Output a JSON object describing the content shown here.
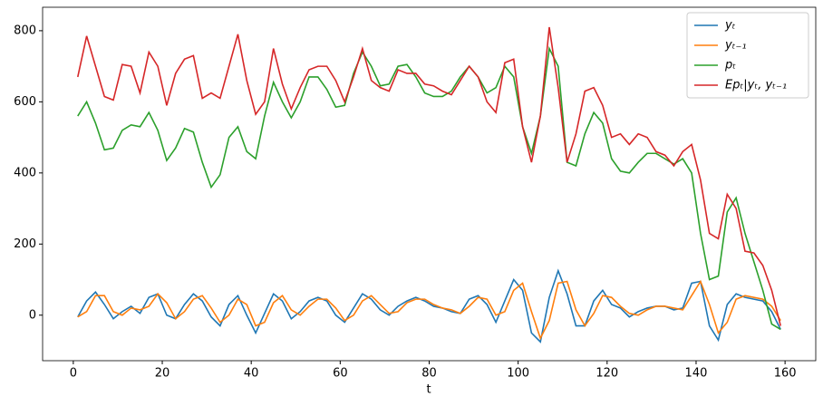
{
  "chart_data": {
    "type": "line",
    "xlabel": "t",
    "x": [
      1,
      3,
      5,
      7,
      9,
      11,
      13,
      15,
      17,
      19,
      21,
      23,
      25,
      27,
      29,
      31,
      33,
      35,
      37,
      39,
      41,
      43,
      45,
      47,
      49,
      51,
      53,
      55,
      57,
      59,
      61,
      63,
      65,
      67,
      69,
      71,
      73,
      75,
      77,
      79,
      81,
      83,
      85,
      87,
      89,
      91,
      93,
      95,
      97,
      99,
      101,
      103,
      105,
      107,
      109,
      111,
      113,
      115,
      117,
      119,
      121,
      123,
      125,
      127,
      129,
      131,
      133,
      135,
      137,
      139,
      141,
      143,
      145,
      147,
      149,
      151,
      153,
      155,
      157,
      159
    ],
    "series": [
      {
        "name": "yₜ",
        "color": "#1f77b4",
        "values": [
          -5,
          40,
          65,
          30,
          -10,
          10,
          25,
          5,
          50,
          60,
          0,
          -10,
          30,
          60,
          40,
          -5,
          -30,
          30,
          55,
          0,
          -50,
          5,
          60,
          40,
          -10,
          10,
          40,
          50,
          40,
          0,
          -20,
          20,
          60,
          45,
          15,
          0,
          25,
          40,
          50,
          40,
          25,
          20,
          10,
          5,
          45,
          55,
          30,
          -20,
          40,
          100,
          70,
          -50,
          -75,
          50,
          125,
          60,
          -30,
          -30,
          40,
          70,
          30,
          20,
          -5,
          10,
          20,
          25,
          25,
          15,
          20,
          90,
          95,
          -30,
          -70,
          30,
          60,
          50,
          45,
          40,
          10,
          -40
        ]
      },
      {
        "name": "yₜ₋₁",
        "color": "#ff7f0e",
        "values": [
          -5,
          10,
          55,
          55,
          10,
          0,
          20,
          15,
          25,
          60,
          35,
          -10,
          10,
          45,
          55,
          20,
          -20,
          0,
          45,
          30,
          -30,
          -20,
          35,
          55,
          15,
          0,
          25,
          45,
          45,
          20,
          -15,
          0,
          40,
          55,
          30,
          5,
          10,
          35,
          45,
          45,
          30,
          20,
          15,
          5,
          25,
          50,
          45,
          0,
          10,
          70,
          90,
          10,
          -65,
          -15,
          90,
          95,
          15,
          -30,
          5,
          55,
          50,
          25,
          5,
          0,
          15,
          25,
          25,
          20,
          15,
          55,
          95,
          30,
          -50,
          -20,
          45,
          55,
          50,
          45,
          25,
          -15
        ]
      },
      {
        "name": "pₜ",
        "color": "#2ca02c",
        "values": [
          560,
          600,
          540,
          465,
          470,
          520,
          535,
          530,
          570,
          520,
          435,
          470,
          525,
          515,
          430,
          360,
          395,
          500,
          530,
          460,
          440,
          560,
          655,
          600,
          555,
          600,
          670,
          670,
          635,
          585,
          590,
          680,
          740,
          700,
          645,
          650,
          700,
          705,
          670,
          625,
          615,
          615,
          630,
          670,
          700,
          670,
          625,
          640,
          700,
          670,
          530,
          455,
          560,
          750,
          700,
          430,
          420,
          510,
          570,
          540,
          440,
          405,
          400,
          430,
          455,
          455,
          440,
          425,
          440,
          400,
          230,
          100,
          110,
          290,
          330,
          230,
          150,
          70,
          -25,
          -40
        ]
      },
      {
        "name": "Epₜ|yₜ, yₜ₋₁",
        "color": "#d62728",
        "values": [
          670,
          785,
          700,
          615,
          605,
          705,
          700,
          625,
          740,
          700,
          590,
          680,
          720,
          730,
          610,
          625,
          610,
          700,
          790,
          660,
          565,
          600,
          750,
          650,
          580,
          640,
          690,
          700,
          700,
          660,
          600,
          670,
          750,
          660,
          640,
          630,
          690,
          680,
          680,
          650,
          645,
          630,
          620,
          660,
          700,
          670,
          600,
          570,
          710,
          720,
          530,
          430,
          560,
          810,
          640,
          430,
          510,
          630,
          640,
          590,
          500,
          510,
          480,
          510,
          500,
          460,
          450,
          420,
          460,
          480,
          380,
          230,
          215,
          340,
          300,
          180,
          175,
          140,
          70,
          -30
        ]
      }
    ],
    "xlim": [
      -6.9,
      166.9
    ],
    "ylim": [
      -128,
      866
    ],
    "xticks": [
      0,
      20,
      40,
      60,
      80,
      100,
      120,
      140,
      160
    ],
    "yticks": [
      0,
      200,
      400,
      600,
      800
    ],
    "legend": "upper right"
  }
}
